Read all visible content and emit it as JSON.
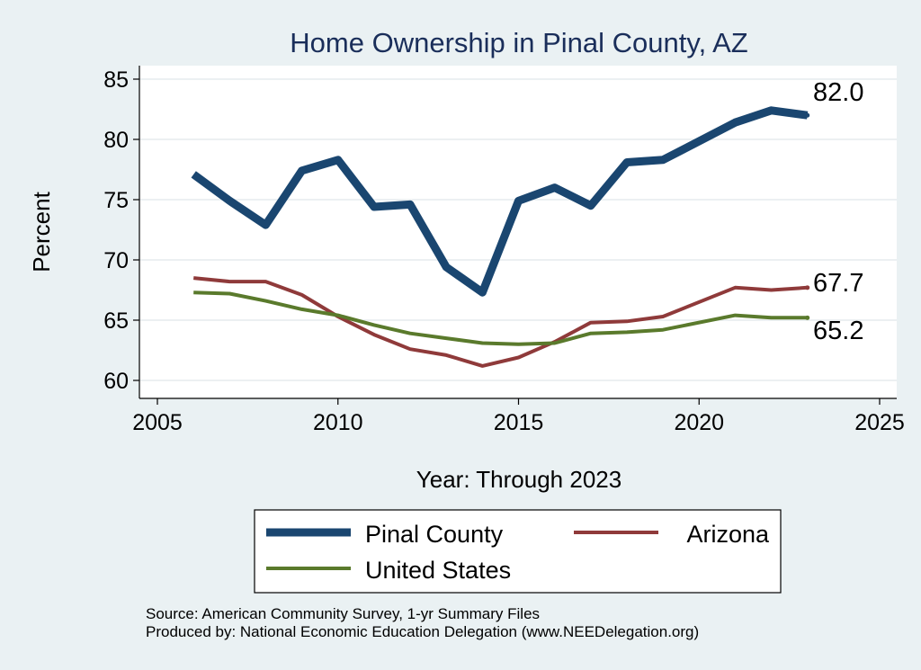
{
  "colors": {
    "background": "#eaf1f3",
    "plot_background": "#ffffff",
    "title": "#1a2e5a",
    "pinal": "#1a4670",
    "arizona": "#8f3a3a",
    "united_states": "#5a7a2c"
  },
  "chart_data": {
    "type": "line",
    "title": "Home Ownership in Pinal County, AZ",
    "xlabel": "Year: Through 2023",
    "ylabel": "Percent",
    "xlim": [
      2005,
      2025
    ],
    "ylim": [
      59.5,
      86
    ],
    "xticks": [
      2005,
      2010,
      2015,
      2020,
      2025
    ],
    "yticks": [
      60,
      65,
      70,
      75,
      80,
      85
    ],
    "grid": true,
    "legend_position": "bottom",
    "series": [
      {
        "name": "Pinal County",
        "color": "#1a4670",
        "x": [
          2006,
          2007,
          2008,
          2009,
          2010,
          2011,
          2012,
          2013,
          2014,
          2015,
          2016,
          2017,
          2018,
          2019,
          2021,
          2022,
          2023
        ],
        "y": [
          77.1,
          74.9,
          72.9,
          77.4,
          78.3,
          74.4,
          74.6,
          69.4,
          67.3,
          74.9,
          76.0,
          74.5,
          78.1,
          78.3,
          81.4,
          82.4,
          82.0
        ],
        "end_label": "82.0"
      },
      {
        "name": "Arizona",
        "color": "#8f3a3a",
        "x": [
          2006,
          2007,
          2008,
          2009,
          2010,
          2011,
          2012,
          2013,
          2014,
          2015,
          2016,
          2017,
          2018,
          2019,
          2021,
          2022,
          2023
        ],
        "y": [
          68.5,
          68.2,
          68.2,
          67.1,
          65.3,
          63.8,
          62.6,
          62.1,
          61.2,
          61.9,
          63.2,
          64.8,
          64.9,
          65.3,
          67.7,
          67.5,
          67.7
        ],
        "end_label": "67.7"
      },
      {
        "name": "United States",
        "color": "#5a7a2c",
        "x": [
          2006,
          2007,
          2008,
          2009,
          2010,
          2011,
          2012,
          2013,
          2014,
          2015,
          2016,
          2017,
          2018,
          2019,
          2021,
          2022,
          2023
        ],
        "y": [
          67.3,
          67.2,
          66.6,
          65.9,
          65.4,
          64.6,
          63.9,
          63.5,
          63.1,
          63.0,
          63.1,
          63.9,
          64.0,
          64.2,
          65.4,
          65.2,
          65.2
        ],
        "end_label": "65.2"
      }
    ]
  },
  "notes": {
    "source": "Source: American Community Survey, 1-yr Summary Files",
    "produced": "Produced by: National Economic Education Delegation (www.NEEDelegation.org)"
  }
}
